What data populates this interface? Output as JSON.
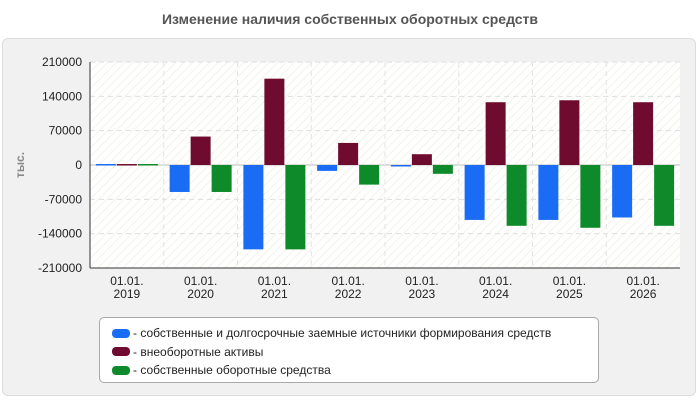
{
  "chart_data": {
    "type": "bar",
    "title": "Изменение наличия собственных оборотных средств",
    "ylabel": "тыс.",
    "ylim": [
      -210000,
      210000
    ],
    "yticks": [
      210000,
      140000,
      70000,
      0,
      -70000,
      -140000,
      -210000
    ],
    "ytick_labels": [
      "210000",
      "140000",
      "70000",
      "0",
      "-70000",
      "-140000",
      "-210000"
    ],
    "grid": true,
    "legend_position": "bottom",
    "categories": [
      [
        "01.01.",
        "2019"
      ],
      [
        "01.01.",
        "2020"
      ],
      [
        "01.01.",
        "2021"
      ],
      [
        "01.01.",
        "2022"
      ],
      [
        "01.01.",
        "2023"
      ],
      [
        "01.01.",
        "2024"
      ],
      [
        "01.01.",
        "2025"
      ],
      [
        "01.01.",
        "2026"
      ]
    ],
    "series": [
      {
        "name": "собственные и долгосрочные заемные источники формирования средств",
        "color": "#1a6cf5",
        "values": [
          2000,
          -55000,
          -172000,
          -12000,
          -2000,
          -112000,
          -112000,
          -107000
        ]
      },
      {
        "name": "внеоборотные активы",
        "color": "#6e0b2f",
        "values": [
          2000,
          58000,
          176000,
          45000,
          22000,
          128000,
          132000,
          128000
        ]
      },
      {
        "name": "собственные оборотные средства",
        "color": "#0f8a2a",
        "values": [
          2000,
          -55000,
          -172000,
          -40000,
          -18000,
          -124000,
          -128000,
          -124000
        ]
      }
    ]
  }
}
